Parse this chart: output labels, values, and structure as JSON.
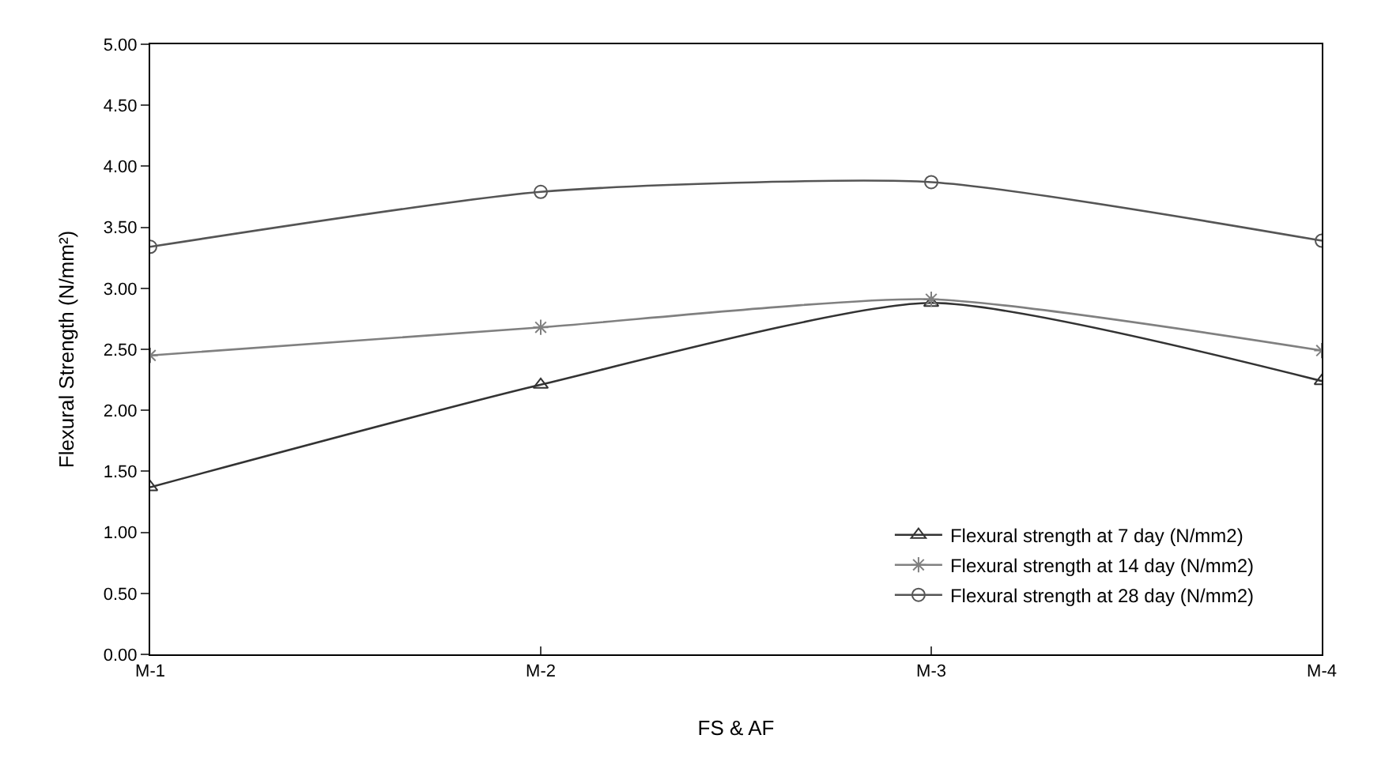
{
  "chart_data": {
    "type": "line",
    "xlabel": "FS & AF",
    "ylabel": "Flexural Strength (N/mm²)",
    "categories": [
      "M-1",
      "M-2",
      "M-3",
      "M-4"
    ],
    "series": [
      {
        "name": "Flexural strength at 7 day (N/mm2)",
        "color": "#333333",
        "marker": "triangle",
        "values": [
          1.37,
          2.21,
          2.88,
          2.24
        ]
      },
      {
        "name": "Flexural strength at 14 day (N/mm2)",
        "color": "#808080",
        "marker": "cross",
        "values": [
          2.45,
          2.68,
          2.91,
          2.49
        ]
      },
      {
        "name": "Flexural strength at 28 day (N/mm2)",
        "color": "#555555",
        "marker": "circle",
        "values": [
          3.34,
          3.79,
          3.87,
          3.39
        ]
      }
    ],
    "ylim": [
      0,
      5
    ],
    "yticks": [
      {
        "value": 0,
        "label": "0.00"
      },
      {
        "value": 0.5,
        "label": "0.50"
      },
      {
        "value": 1,
        "label": "1.00"
      },
      {
        "value": 1.5,
        "label": "1.50"
      },
      {
        "value": 2,
        "label": "2.00"
      },
      {
        "value": 2.5,
        "label": "2.50"
      },
      {
        "value": 3,
        "label": "3.00"
      },
      {
        "value": 3.5,
        "label": "3.50"
      },
      {
        "value": 4,
        "label": "4.00"
      },
      {
        "value": 4.5,
        "label": "4.50"
      },
      {
        "value": 5,
        "label": "5.00"
      }
    ],
    "legend": "bottom right",
    "line_style": "solid"
  }
}
